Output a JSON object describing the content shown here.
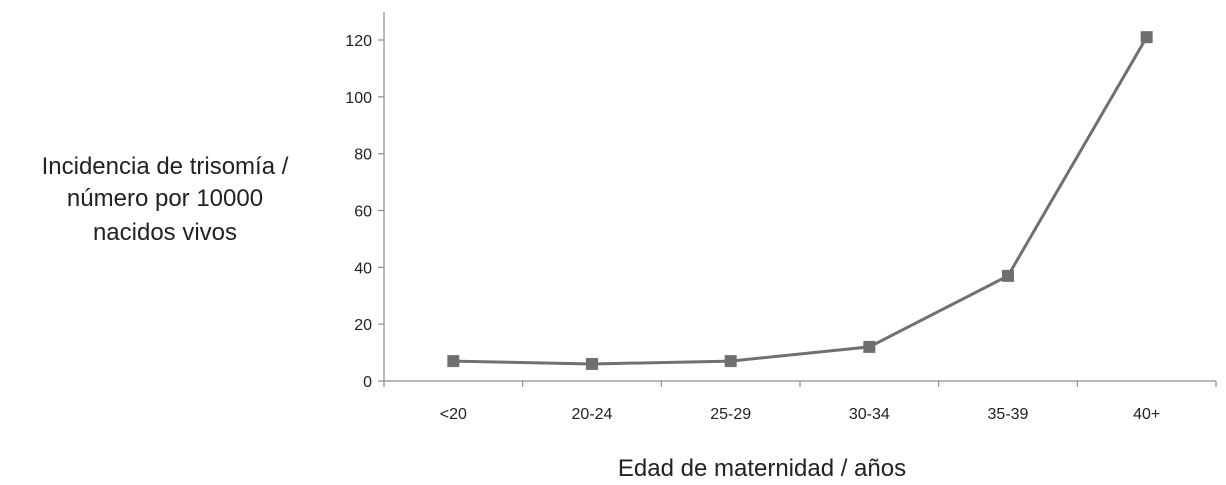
{
  "chart_data": {
    "type": "line",
    "categories": [
      "<20",
      "20-24",
      "25-29",
      "30-34",
      "35-39",
      "40+"
    ],
    "series": [
      {
        "values": [
          7,
          6,
          7,
          12,
          37,
          121
        ]
      }
    ],
    "ylabel": [
      "Incidencia de trisomía /",
      "número por 10000",
      "nacidos vivos"
    ],
    "xlabel": "Edad de maternidad / años",
    "ylim": [
      0,
      120
    ],
    "yticks": [
      0,
      20,
      40,
      60,
      80,
      100,
      120
    ],
    "grid": false,
    "legend": "none",
    "colors": {
      "line": "#707070",
      "marker": "#6f6f6f",
      "axis": "#8c8c8c"
    }
  }
}
